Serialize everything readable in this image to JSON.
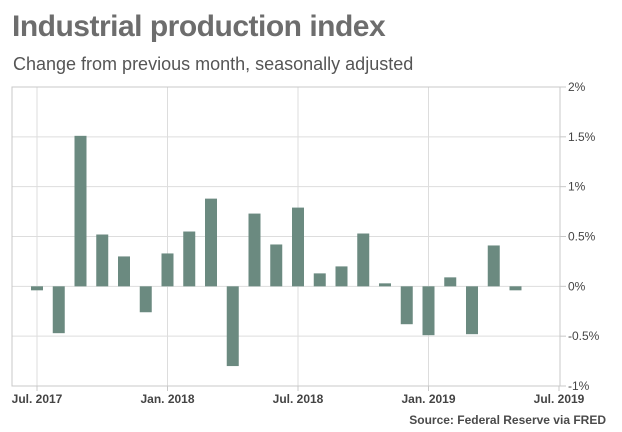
{
  "title": "Industrial production index",
  "subtitle": "Change from previous month, seasonally adjusted",
  "source": "Source: Federal Reserve via FRED",
  "colors": {
    "bar": "#6b8a80",
    "grid": "#dddddd",
    "frame": "#c8c8c8"
  },
  "chart_data": {
    "type": "bar",
    "title": "Industrial production index",
    "subtitle": "Change from previous month, seasonally adjusted",
    "categories": [
      "2017-07",
      "2017-08",
      "2017-09",
      "2017-10",
      "2017-11",
      "2017-12",
      "2018-01",
      "2018-02",
      "2018-03",
      "2018-04",
      "2018-05",
      "2018-06",
      "2018-07",
      "2018-08",
      "2018-09",
      "2018-10",
      "2018-11",
      "2018-12",
      "2019-01",
      "2019-02",
      "2019-03",
      "2019-04",
      "2019-05",
      "2019-06",
      "2019-07"
    ],
    "values": [
      -0.04,
      -0.47,
      1.51,
      0.52,
      0.3,
      -0.26,
      0.33,
      0.55,
      0.88,
      -0.8,
      0.73,
      0.42,
      0.79,
      0.13,
      0.2,
      0.53,
      0.03,
      -0.38,
      -0.49,
      0.09,
      -0.48,
      0.41,
      -0.04,
      null,
      null
    ],
    "ylim": [
      -1,
      2
    ],
    "y_ticks": [
      {
        "value": 2,
        "label": "2%"
      },
      {
        "value": 1.5,
        "label": "1.5%"
      },
      {
        "value": 1,
        "label": "1%"
      },
      {
        "value": 0.5,
        "label": "0.5%"
      },
      {
        "value": 0,
        "label": "0%"
      },
      {
        "value": -0.5,
        "label": "-0.5%"
      },
      {
        "value": -1,
        "label": "-1%"
      }
    ],
    "x_ticks": [
      {
        "index": 0,
        "label": "Jul. 2017"
      },
      {
        "index": 6,
        "label": "Jan. 2018"
      },
      {
        "index": 12,
        "label": "Jul. 2018"
      },
      {
        "index": 18,
        "label": "Jan. 2019"
      },
      {
        "index": 24,
        "label": "Jul. 2019"
      }
    ],
    "grid": true,
    "y_axis_position": "right",
    "xlabel": "",
    "ylabel": ""
  }
}
